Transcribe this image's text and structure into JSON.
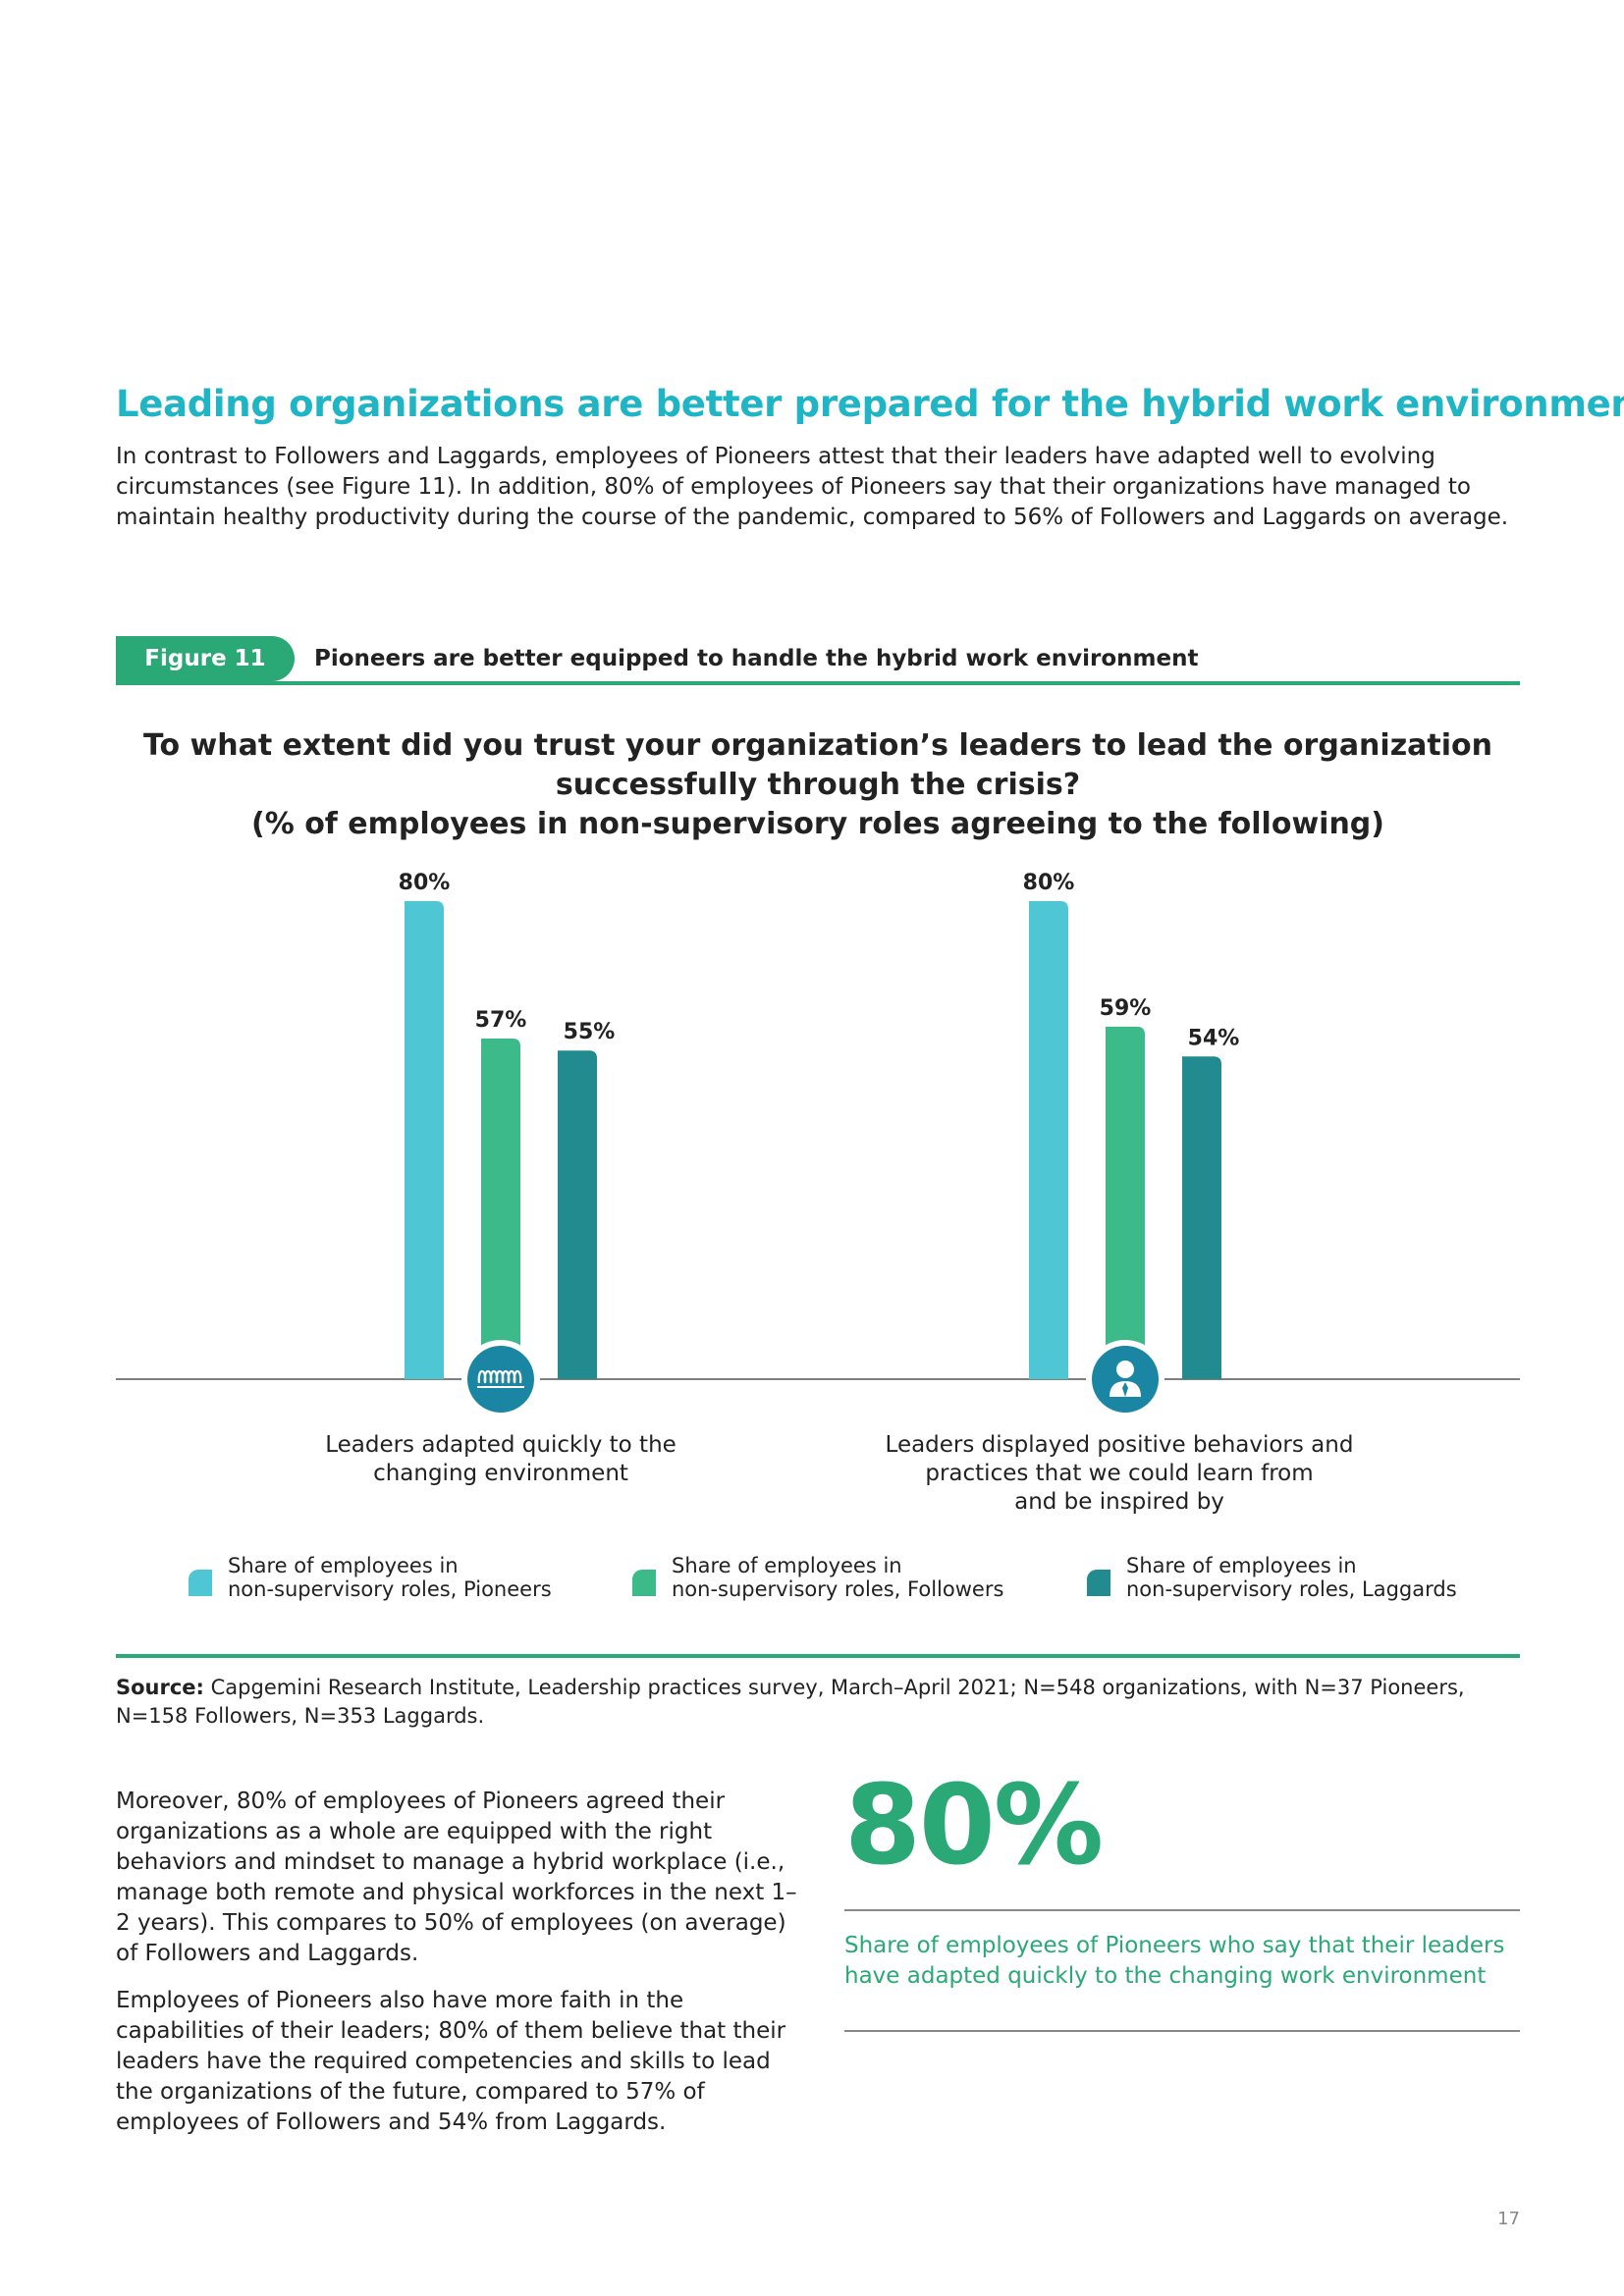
{
  "heading": "Leading organizations are better prepared for the hybrid work environment",
  "intro": "In contrast to Followers and Laggards, employees of Pioneers attest that their leaders have adapted well to evolving circumstances (see Figure 11). In addition, 80% of employees of Pioneers say that their organizations have managed to maintain healthy productivity during the course of the pandemic, compared to 56% of Followers and Laggards on average.",
  "figure": {
    "label": "Figure 11",
    "title": "Pioneers are better equipped to handle the hybrid work environment"
  },
  "chart_question": {
    "line1": "To what extent did you trust your organization’s leaders to lead the organization",
    "line2": "successfully through the crisis?",
    "line3": "(% of employees in non-supervisory roles agreeing to the following)"
  },
  "chart_data": {
    "type": "bar",
    "title": "To what extent did you trust your organization’s leaders to lead the organization successfully through the crisis? (% of employees in non-supervisory roles agreeing to the following)",
    "categories": [
      "Leaders adapted quickly to the changing environment",
      "Leaders displayed positive behaviors and practices that we could learn from and be inspired by"
    ],
    "category_lines": [
      [
        "Leaders adapted quickly to the",
        "changing environment"
      ],
      [
        "Leaders displayed positive behaviors and",
        "practices that we could learn from",
        "and be inspired by"
      ]
    ],
    "category_icons": [
      "coil-icon",
      "person-tie-icon"
    ],
    "series": [
      {
        "name": "Share of employees in non-supervisory roles, Pioneers",
        "values": [
          80,
          80
        ],
        "color": "#4fc6d3"
      },
      {
        "name": "Share of employees in non-supervisory roles, Followers",
        "values": [
          57,
          59
        ],
        "color": "#3dba8a"
      },
      {
        "name": "Share of employees in non-supervisory roles, Laggards",
        "values": [
          55,
          54
        ],
        "color": "#218b90"
      }
    ],
    "legend": [
      {
        "line1": "Share of employees in",
        "line2": "non-supervisory roles, Pioneers"
      },
      {
        "line1": "Share of employees in",
        "line2": "non-supervisory roles, Followers"
      },
      {
        "line1": "Share of employees in",
        "line2": "non-supervisory roles, Laggards"
      }
    ],
    "value_suffix": "%",
    "ylim": [
      0,
      80
    ],
    "xlabel": "",
    "ylabel": "",
    "grid": false
  },
  "source": {
    "label": "Source:",
    "text": " Capgemini Research Institute, Leadership practices survey, March–April 2021; N=548 organizations, with N=37 Pioneers, N=158 Followers, N=353 Laggards."
  },
  "body": {
    "p1": "Moreover, 80% of employees of Pioneers agreed their organizations as a whole are equipped with the right behaviors and mindset to manage a hybrid workplace (i.e., manage both remote and physical workforces in the next 1–2 years). This compares to 50% of employees (on average) of Followers and Laggards.",
    "p2": "Employees of Pioneers also have more faith in the capabilities of their leaders; 80% of them believe that their leaders have the required competencies and skills to lead the organizations of the future, compared to 57% of employees of Followers and 54% from Laggards."
  },
  "stat": {
    "value": "80%",
    "caption": "Share of employees of Pioneers who say that their leaders have adapted quickly to the changing work environment"
  },
  "page_number": "17",
  "colors": {
    "heading": "#1fb5c4",
    "accent": "#2aa876",
    "pioneers": "#4fc6d3",
    "followers": "#3dba8a",
    "laggards": "#218b90",
    "icon_circle": "#1a86a4"
  }
}
